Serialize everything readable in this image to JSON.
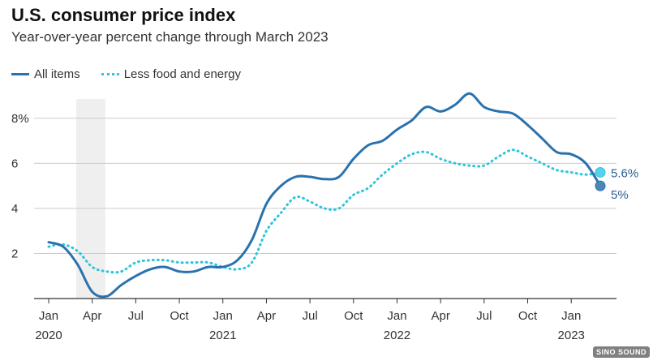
{
  "chart_data": {
    "type": "line",
    "title": "U.S. consumer price index",
    "subtitle": "Year-over-year percent change through March 2023",
    "y_ticks": [
      {
        "value": 2,
        "label": "2"
      },
      {
        "value": 4,
        "label": "4"
      },
      {
        "value": 6,
        "label": "6"
      },
      {
        "value": 8,
        "label": "8%"
      }
    ],
    "ylim": [
      0,
      9
    ],
    "x_ticks": [
      {
        "month": 0,
        "label": "Jan",
        "year": "2020"
      },
      {
        "month": 3,
        "label": "Apr"
      },
      {
        "month": 6,
        "label": "Jul"
      },
      {
        "month": 9,
        "label": "Oct"
      },
      {
        "month": 12,
        "label": "Jan",
        "year": "2021"
      },
      {
        "month": 15,
        "label": "Apr"
      },
      {
        "month": 18,
        "label": "Jul"
      },
      {
        "month": 21,
        "label": "Oct"
      },
      {
        "month": 24,
        "label": "Jan",
        "year": "2022"
      },
      {
        "month": 27,
        "label": "Apr"
      },
      {
        "month": 30,
        "label": "Jul"
      },
      {
        "month": 33,
        "label": "Oct"
      },
      {
        "month": 36,
        "label": "Jan",
        "year": "2023"
      }
    ],
    "xlim": [
      0,
      38
    ],
    "recession_shade": {
      "start_month": 1.9,
      "end_month": 3.9
    },
    "series": [
      {
        "name": "All items",
        "style": "solid",
        "color": "#2a72ad",
        "end_label": "5%",
        "values": [
          2.5,
          2.3,
          1.5,
          0.3,
          0.1,
          0.6,
          1.0,
          1.3,
          1.4,
          1.2,
          1.2,
          1.4,
          1.4,
          1.7,
          2.6,
          4.2,
          5.0,
          5.4,
          5.4,
          5.3,
          5.4,
          6.2,
          6.8,
          7.0,
          7.5,
          7.9,
          8.5,
          8.3,
          8.6,
          9.1,
          8.5,
          8.3,
          8.2,
          7.7,
          7.1,
          6.5,
          6.4,
          6.0,
          5.0
        ]
      },
      {
        "name": "Less food and energy",
        "style": "dotted",
        "color": "#2fc4dc",
        "end_label": "5.6%",
        "values": [
          2.3,
          2.4,
          2.1,
          1.4,
          1.2,
          1.2,
          1.6,
          1.7,
          1.7,
          1.6,
          1.6,
          1.6,
          1.4,
          1.3,
          1.6,
          3.0,
          3.8,
          4.5,
          4.3,
          4.0,
          4.0,
          4.6,
          4.9,
          5.5,
          6.0,
          6.4,
          6.5,
          6.2,
          6.0,
          5.9,
          5.9,
          6.3,
          6.6,
          6.3,
          6.0,
          5.7,
          5.6,
          5.5,
          5.6
        ]
      }
    ]
  },
  "watermark_text": "SINO SOUND"
}
